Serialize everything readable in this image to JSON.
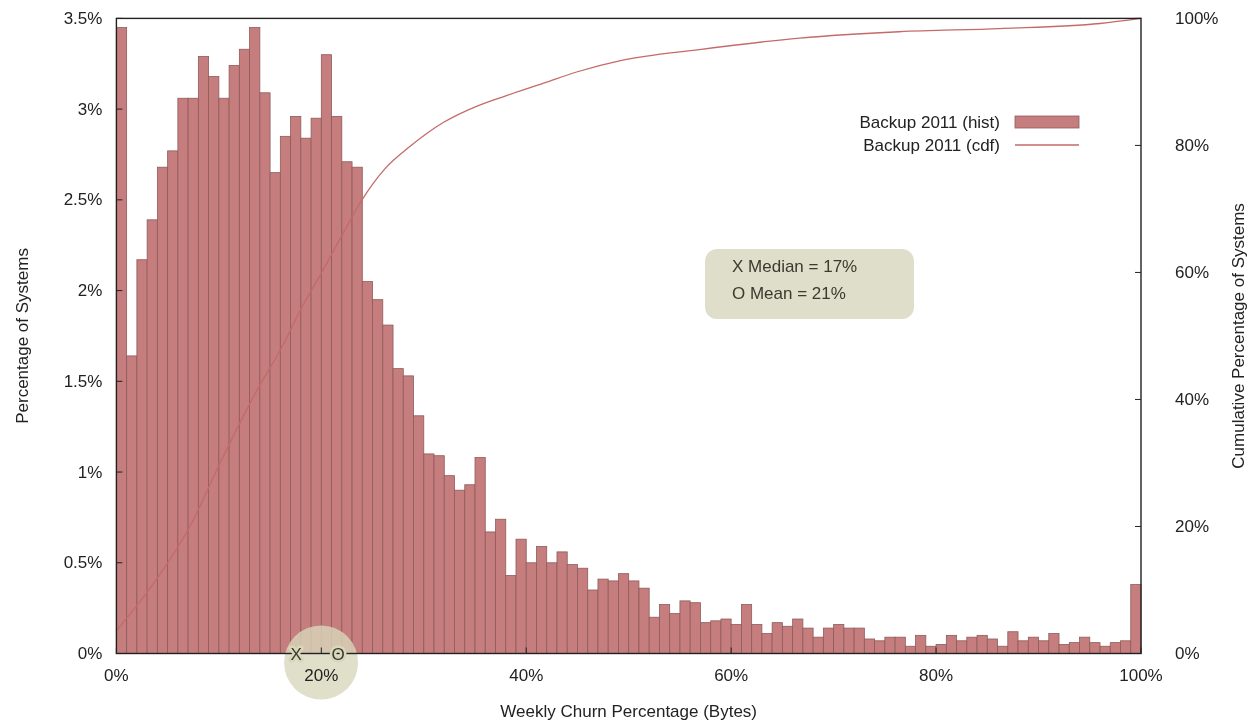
{
  "chart_data": {
    "type": "histogram",
    "xlabel": "Weekly Churn Percentage (Bytes)",
    "ylabel": "Percentage of Systems",
    "y2label": "Cumulative Percentage of Systems",
    "bins": [
      0,
      1,
      2,
      3,
      4,
      5,
      6,
      7,
      8,
      9,
      10,
      11,
      12,
      13,
      14,
      15,
      16,
      17,
      18,
      19,
      20,
      21,
      22,
      23,
      24,
      25,
      26,
      27,
      28,
      29,
      30,
      31,
      32,
      33,
      34,
      35,
      36,
      37,
      38,
      39,
      40,
      41,
      42,
      43,
      44,
      45,
      46,
      47,
      48,
      49,
      50,
      51,
      52,
      53,
      54,
      55,
      56,
      57,
      58,
      59,
      60,
      61,
      62,
      63,
      64,
      65,
      66,
      67,
      68,
      69,
      70,
      71,
      72,
      73,
      74,
      75,
      76,
      77,
      78,
      79,
      80,
      81,
      82,
      83,
      84,
      85,
      86,
      87,
      88,
      89,
      90,
      91,
      92,
      93,
      94,
      95,
      96,
      97,
      98,
      99,
      100
    ],
    "xlim": [
      0,
      100
    ],
    "xticks": [
      {
        "value": 0,
        "label": "0%"
      },
      {
        "value": 20,
        "label": "20%"
      },
      {
        "value": 40,
        "label": "40%"
      },
      {
        "value": 60,
        "label": "60%"
      },
      {
        "value": 80,
        "label": "80%"
      },
      {
        "value": 100,
        "label": "100%"
      }
    ],
    "ylim": [
      0,
      3.5
    ],
    "yticks": [
      {
        "value": 0,
        "label": "0%"
      },
      {
        "value": 0.5,
        "label": "0.5%"
      },
      {
        "value": 1,
        "label": "1%"
      },
      {
        "value": 1.5,
        "label": "1.5%"
      },
      {
        "value": 2,
        "label": "2%"
      },
      {
        "value": 2.5,
        "label": "2.5%"
      },
      {
        "value": 3,
        "label": "3%"
      },
      {
        "value": 3.5,
        "label": "3.5%"
      }
    ],
    "y2lim": [
      0,
      100
    ],
    "y2ticks": [
      {
        "value": 0,
        "label": "0%"
      },
      {
        "value": 20,
        "label": "20%"
      },
      {
        "value": 40,
        "label": "40%"
      },
      {
        "value": 60,
        "label": "60%"
      },
      {
        "value": 80,
        "label": "80%"
      },
      {
        "value": 100,
        "label": "100%"
      }
    ],
    "series": [
      {
        "name": "Backup 2011 (hist)",
        "color": "#c57d7d",
        "values": [
          3.45,
          1.64,
          2.17,
          2.39,
          2.68,
          2.77,
          3.06,
          3.06,
          3.29,
          3.18,
          3.06,
          3.24,
          3.33,
          3.45,
          3.09,
          2.65,
          2.85,
          2.96,
          2.84,
          2.95,
          3.3,
          2.96,
          2.71,
          2.68,
          2.05,
          1.95,
          1.81,
          1.57,
          1.53,
          1.31,
          1.1,
          1.09,
          0.98,
          0.9,
          0.93,
          1.08,
          0.67,
          0.74,
          0.43,
          0.63,
          0.5,
          0.59,
          0.5,
          0.56,
          0.49,
          0.47,
          0.35,
          0.41,
          0.4,
          0.44,
          0.4,
          0.36,
          0.2,
          0.27,
          0.22,
          0.29,
          0.28,
          0.17,
          0.18,
          0.19,
          0.16,
          0.27,
          0.16,
          0.11,
          0.17,
          0.15,
          0.19,
          0.14,
          0.09,
          0.14,
          0.16,
          0.14,
          0.14,
          0.08,
          0.07,
          0.09,
          0.09,
          0.04,
          0.1,
          0.04,
          0.05,
          0.1,
          0.07,
          0.09,
          0.1,
          0.08,
          0.04,
          0.12,
          0.07,
          0.09,
          0.07,
          0.11,
          0.05,
          0.06,
          0.09,
          0.06,
          0.04,
          0.06,
          0.07,
          0.38
        ]
      },
      {
        "name": "Backup 2011 (cdf)",
        "type": "line",
        "axis": "y2",
        "color": "#c46a6a",
        "x": [
          0,
          3.7,
          7.3,
          10,
          13.5,
          16.3,
          17.9,
          20,
          22,
          24,
          26.2,
          28.7,
          31.9,
          35.2,
          38,
          41.7,
          45,
          49.3,
          56.9,
          66.7,
          76.4,
          86.2,
          96,
          100
        ],
        "values": [
          3.6,
          11.2,
          20.4,
          29.6,
          40.8,
          48.7,
          53.9,
          59.9,
          65.8,
          71.5,
          76.3,
          79.9,
          83.6,
          86.2,
          87.8,
          89.8,
          91.6,
          93.4,
          95.1,
          96.9,
          97.9,
          98.4,
          99.2,
          100
        ]
      }
    ],
    "legend": "top right",
    "annotations": [
      "X Median = 17%",
      "O Mean = 21%",
      {
        "text": "X",
        "x": 17,
        "y": 0
      },
      {
        "text": "O",
        "x": 21,
        "y": 0
      }
    ]
  }
}
